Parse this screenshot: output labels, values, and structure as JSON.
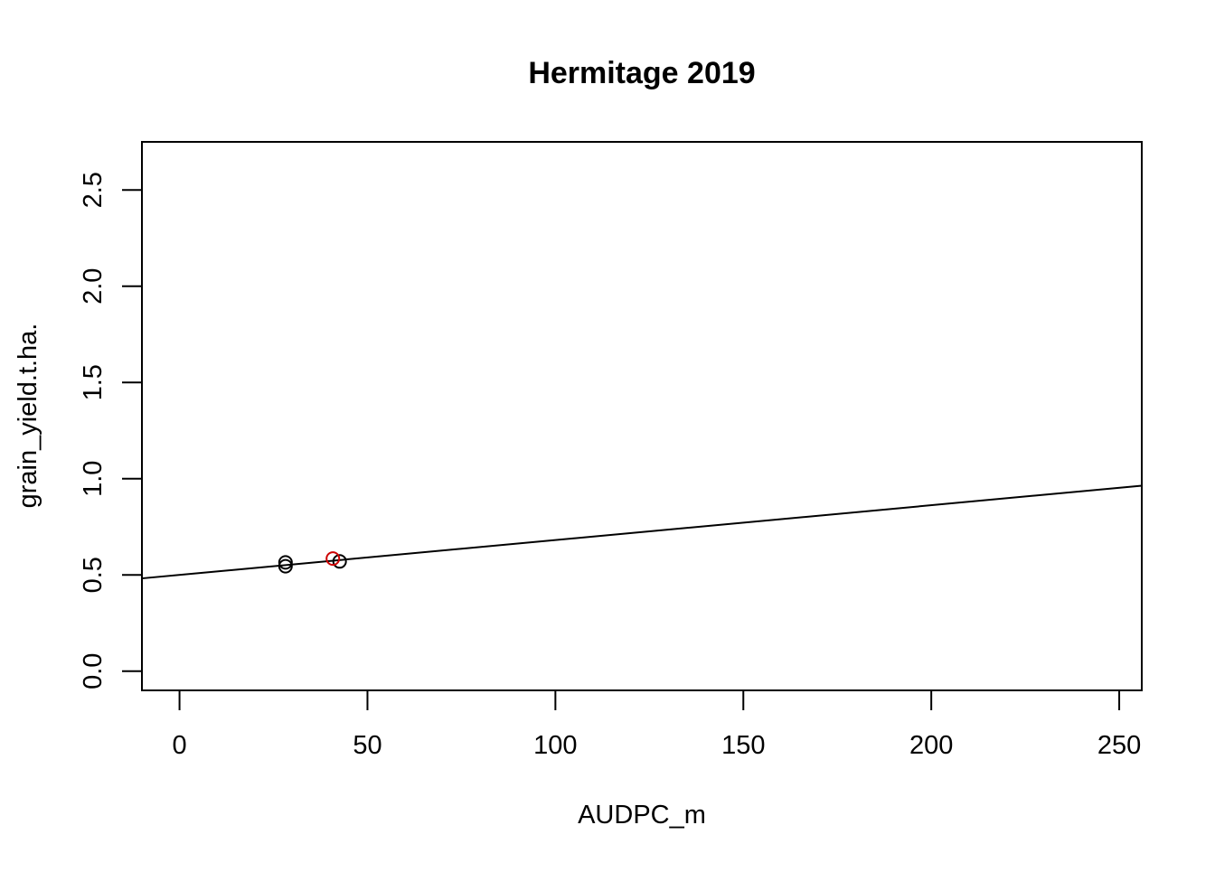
{
  "chart_data": {
    "type": "scatter",
    "title": "Hermitage 2019",
    "xlabel": "AUDPC_m",
    "ylabel": "grain_yield.t.ha.",
    "xlim": [
      -10,
      256
    ],
    "ylim": [
      -0.1,
      2.75
    ],
    "x_ticks": [
      0,
      50,
      100,
      150,
      200,
      250
    ],
    "x_tick_labels": [
      "0",
      "50",
      "100",
      "150",
      "200",
      "250"
    ],
    "y_ticks": [
      0.0,
      0.5,
      1.0,
      1.5,
      2.0,
      2.5
    ],
    "y_tick_labels": [
      "0.0",
      "0.5",
      "1.0",
      "1.5",
      "2.0",
      "2.5"
    ],
    "grid": false,
    "series": [
      {
        "color": "#000000",
        "marker": "open-circle",
        "points": [
          {
            "x": 28.2,
            "y": 0.565
          },
          {
            "x": 28.2,
            "y": 0.545
          },
          {
            "x": 42.6,
            "y": 0.57
          }
        ]
      },
      {
        "color": "#cc0000",
        "marker": "open-circle",
        "points": [
          {
            "x": 40.8,
            "y": 0.585
          }
        ]
      }
    ],
    "fit_line": {
      "intercept": 0.5,
      "slope": 0.00181,
      "color": "#000000"
    }
  }
}
